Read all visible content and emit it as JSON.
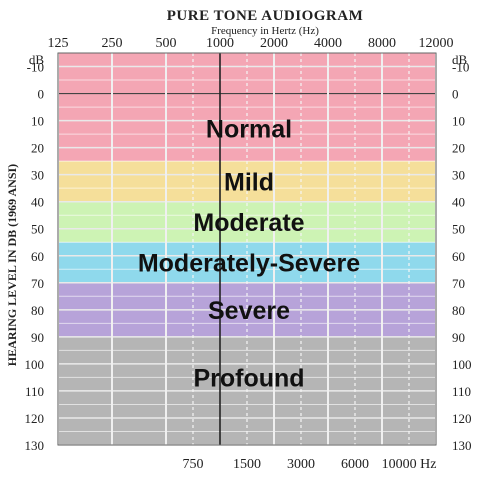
{
  "chart_data": {
    "type": "audiogram",
    "title": "PURE TONE AUDIOGRAM",
    "xlabel": "Frequency in Hertz (Hz)",
    "ylabel": "HEARING LEVEL IN DB (1969 ANSI)",
    "y_unit": "dB",
    "top_frequencies": [
      "125",
      "250",
      "500",
      "1000",
      "2000",
      "4000",
      "8000",
      "12000"
    ],
    "bottom_frequencies": [
      "750",
      "1500",
      "3000",
      "6000",
      "10000 Hz"
    ],
    "y_ticks": [
      -10,
      0,
      10,
      20,
      30,
      40,
      50,
      60,
      70,
      80,
      90,
      100,
      110,
      120,
      130
    ],
    "ylim": [
      -15,
      130
    ],
    "y_inverted": true,
    "bands": [
      {
        "label": "Normal",
        "range": [
          -15,
          25
        ],
        "color": "#f4a6b4"
      },
      {
        "label": "Mild",
        "range": [
          25,
          40
        ],
        "color": "#f5df9a"
      },
      {
        "label": "Moderate",
        "range": [
          40,
          55
        ],
        "color": "#cdf3b4"
      },
      {
        "label": "Moderately-Severe",
        "range": [
          55,
          70
        ],
        "color": "#8fd9ec"
      },
      {
        "label": "Severe",
        "range": [
          70,
          90
        ],
        "color": "#b7a3d9"
      },
      {
        "label": "Profound",
        "range": [
          90,
          130
        ],
        "color": "#b5b5b5"
      }
    ]
  }
}
